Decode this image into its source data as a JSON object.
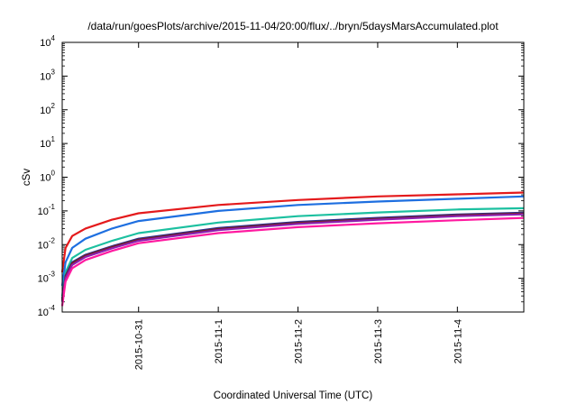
{
  "chart_data": {
    "type": "line",
    "title": "/data/run/goesPlots/archive/2015-11-04/20:00/flux/../bryn/5daysMarsAccumulated.plot",
    "xlabel": "Coordinated Universal Time (UTC)",
    "ylabel": "cSv",
    "y_scale": "log",
    "ylim": [
      0.0001,
      10000
    ],
    "y_ticks": [
      {
        "base": "10",
        "exp": "-4"
      },
      {
        "base": "10",
        "exp": "-3"
      },
      {
        "base": "10",
        "exp": "-2"
      },
      {
        "base": "10",
        "exp": "-1"
      },
      {
        "base": "10",
        "exp": "0"
      },
      {
        "base": "10",
        "exp": "1"
      },
      {
        "base": "10",
        "exp": "2"
      },
      {
        "base": "10",
        "exp": "3"
      },
      {
        "base": "10",
        "exp": "4"
      }
    ],
    "xlim": [
      "2015-10-30T01:00",
      "2015-11-04T20:00"
    ],
    "x_ticks": [
      "2015-10-31",
      "2015-11-1",
      "2015-11-2",
      "2015-11-3",
      "2015-11-4"
    ],
    "x_tick_dates": [
      "2015-10-31T00:00",
      "2015-11-01T00:00",
      "2015-11-02T00:00",
      "2015-11-03T00:00",
      "2015-11-04T00:00"
    ],
    "grid": false,
    "legend": "none",
    "series": [
      {
        "color": "#e41a1c",
        "x": [
          "2015-10-30T01:00",
          "2015-10-30T02:00",
          "2015-10-30T04:00",
          "2015-10-30T08:00",
          "2015-10-30T16:00",
          "2015-10-31T00:00",
          "2015-11-01T00:00",
          "2015-11-02T00:00",
          "2015-11-03T00:00",
          "2015-11-04T00:00",
          "2015-11-04T20:00"
        ],
        "y": [
          0.0015,
          0.008,
          0.018,
          0.03,
          0.055,
          0.085,
          0.15,
          0.21,
          0.27,
          0.31,
          0.35
        ]
      },
      {
        "color": "#1e6fe0",
        "x": [
          "2015-10-30T01:00",
          "2015-10-30T02:00",
          "2015-10-30T04:00",
          "2015-10-30T08:00",
          "2015-10-30T16:00",
          "2015-10-31T00:00",
          "2015-11-01T00:00",
          "2015-11-02T00:00",
          "2015-11-03T00:00",
          "2015-11-04T00:00",
          "2015-11-04T20:00"
        ],
        "y": [
          0.0006,
          0.003,
          0.008,
          0.015,
          0.03,
          0.05,
          0.1,
          0.15,
          0.19,
          0.23,
          0.27
        ]
      },
      {
        "color": "#1cc0a0",
        "x": [
          "2015-10-30T01:00",
          "2015-10-30T02:00",
          "2015-10-30T04:00",
          "2015-10-30T08:00",
          "2015-10-30T16:00",
          "2015-10-31T00:00",
          "2015-11-01T00:00",
          "2015-11-02T00:00",
          "2015-11-03T00:00",
          "2015-11-04T00:00",
          "2015-11-04T20:00"
        ],
        "y": [
          0.0003,
          0.0015,
          0.004,
          0.007,
          0.013,
          0.022,
          0.045,
          0.07,
          0.09,
          0.11,
          0.12
        ]
      },
      {
        "color": "#2b2f8f",
        "x": [
          "2015-10-30T01:00",
          "2015-10-30T02:00",
          "2015-10-30T04:00",
          "2015-10-30T08:00",
          "2015-10-30T16:00",
          "2015-10-31T00:00",
          "2015-11-01T00:00",
          "2015-11-02T00:00",
          "2015-11-03T00:00",
          "2015-11-04T00:00",
          "2015-11-04T20:00"
        ],
        "y": [
          0.00025,
          0.0012,
          0.003,
          0.005,
          0.009,
          0.015,
          0.031,
          0.047,
          0.062,
          0.078,
          0.088
        ]
      },
      {
        "color": "#7a1f1f",
        "x": [
          "2015-10-30T01:00",
          "2015-10-30T02:00",
          "2015-10-30T04:00",
          "2015-10-30T08:00",
          "2015-10-30T16:00",
          "2015-10-31T00:00",
          "2015-11-01T00:00",
          "2015-11-02T00:00",
          "2015-11-03T00:00",
          "2015-11-04T00:00",
          "2015-11-04T20:00"
        ],
        "y": [
          0.00022,
          0.0011,
          0.0028,
          0.0047,
          0.0085,
          0.014,
          0.029,
          0.044,
          0.058,
          0.074,
          0.083
        ]
      },
      {
        "color": "#8a1fb0",
        "x": [
          "2015-10-30T01:00",
          "2015-10-30T02:00",
          "2015-10-30T04:00",
          "2015-10-30T08:00",
          "2015-10-30T16:00",
          "2015-10-31T00:00",
          "2015-11-01T00:00",
          "2015-11-02T00:00",
          "2015-11-03T00:00",
          "2015-11-04T00:00",
          "2015-11-04T20:00"
        ],
        "y": [
          0.0002,
          0.001,
          0.0025,
          0.0043,
          0.0078,
          0.013,
          0.027,
          0.041,
          0.055,
          0.07,
          0.079
        ]
      },
      {
        "color": "#ff1aa0",
        "x": [
          "2015-10-30T01:00",
          "2015-10-30T02:00",
          "2015-10-30T04:00",
          "2015-10-30T08:00",
          "2015-10-30T16:00",
          "2015-10-31T00:00",
          "2015-11-01T00:00",
          "2015-11-02T00:00",
          "2015-11-03T00:00",
          "2015-11-04T00:00",
          "2015-11-04T20:00"
        ],
        "y": [
          0.00015,
          0.0008,
          0.002,
          0.0035,
          0.0065,
          0.011,
          0.022,
          0.033,
          0.043,
          0.053,
          0.062
        ]
      }
    ]
  }
}
